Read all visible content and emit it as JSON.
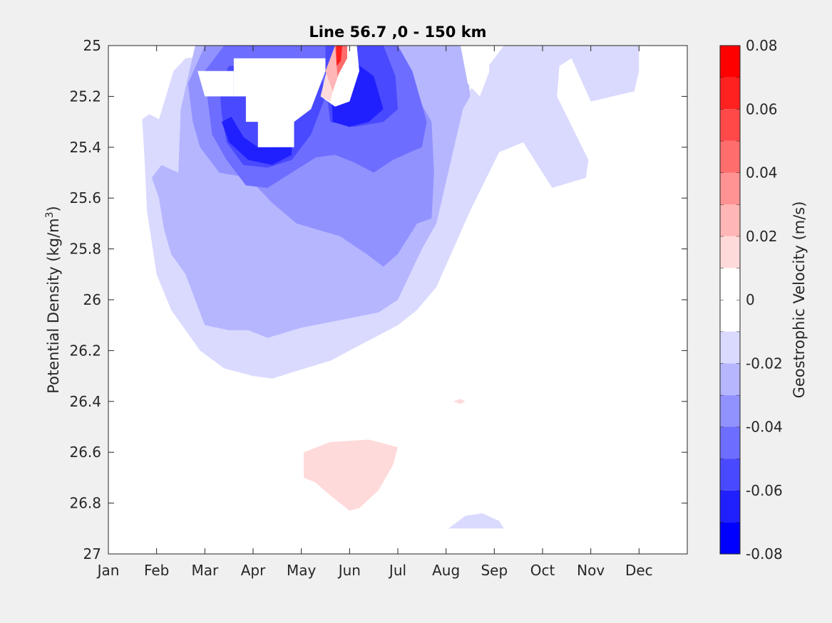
{
  "chart_data": {
    "type": "filled-contour",
    "title": "Line 56.7 ,0 - 150 km",
    "xlabel": "",
    "ylabel": "Potential Density (kg/m",
    "ylabel_sup": "3",
    "ylabel_close": ")",
    "y_reversed": true,
    "ylim": [
      25,
      27
    ],
    "xlim": [
      1,
      13
    ],
    "x_ticks": [
      {
        "label": "Jan",
        "value": 1
      },
      {
        "label": "Feb",
        "value": 2
      },
      {
        "label": "Mar",
        "value": 3
      },
      {
        "label": "Apr",
        "value": 4
      },
      {
        "label": "May",
        "value": 5
      },
      {
        "label": "Jun",
        "value": 6
      },
      {
        "label": "Jul",
        "value": 7
      },
      {
        "label": "Aug",
        "value": 8
      },
      {
        "label": "Sep",
        "value": 9
      },
      {
        "label": "Oct",
        "value": 10
      },
      {
        "label": "Nov",
        "value": 11
      },
      {
        "label": "Dec",
        "value": 12
      }
    ],
    "y_ticks": [
      {
        "label": "25",
        "value": 25
      },
      {
        "label": "25.2",
        "value": 25.2
      },
      {
        "label": "25.4",
        "value": 25.4
      },
      {
        "label": "25.6",
        "value": 25.6
      },
      {
        "label": "25.8",
        "value": 25.8
      },
      {
        "label": "26",
        "value": 26
      },
      {
        "label": "26.2",
        "value": 26.2
      },
      {
        "label": "26.4",
        "value": 26.4
      },
      {
        "label": "26.6",
        "value": 26.6
      },
      {
        "label": "26.8",
        "value": 26.8
      },
      {
        "label": "27",
        "value": 27
      }
    ],
    "colorbar": {
      "label": "Geostrophic Velocity (m/s)",
      "min": -0.08,
      "max": 0.08,
      "levels": [
        {
          "lo": -0.08,
          "hi": -0.07,
          "color": "#0000ff"
        },
        {
          "lo": -0.07,
          "hi": -0.06,
          "color": "#2020ff"
        },
        {
          "lo": -0.06,
          "hi": -0.05,
          "color": "#4949ff"
        },
        {
          "lo": -0.05,
          "hi": -0.04,
          "color": "#6d6dff"
        },
        {
          "lo": -0.04,
          "hi": -0.03,
          "color": "#9292ff"
        },
        {
          "lo": -0.03,
          "hi": -0.02,
          "color": "#b6b6ff"
        },
        {
          "lo": -0.02,
          "hi": -0.01,
          "color": "#dadaff"
        },
        {
          "lo": -0.01,
          "hi": 0.0,
          "color": "#ffffff"
        },
        {
          "lo": 0.0,
          "hi": 0.01,
          "color": "#ffffff"
        },
        {
          "lo": 0.01,
          "hi": 0.02,
          "color": "#ffdada"
        },
        {
          "lo": 0.02,
          "hi": 0.03,
          "color": "#ffb6b6"
        },
        {
          "lo": 0.03,
          "hi": 0.04,
          "color": "#ff9292"
        },
        {
          "lo": 0.04,
          "hi": 0.05,
          "color": "#ff6d6d"
        },
        {
          "lo": 0.05,
          "hi": 0.06,
          "color": "#ff4949"
        },
        {
          "lo": 0.06,
          "hi": 0.07,
          "color": "#ff2020"
        },
        {
          "lo": 0.07,
          "hi": 0.08,
          "color": "#ff0000"
        }
      ],
      "ticks": [
        {
          "label": "0.08",
          "value": 0.08
        },
        {
          "label": "0.06",
          "value": 0.06
        },
        {
          "label": "0.04",
          "value": 0.04
        },
        {
          "label": "0.02",
          "value": 0.02
        },
        {
          "label": "0",
          "value": 0.0
        },
        {
          "label": "-0.02",
          "value": -0.02
        },
        {
          "label": "-0.04",
          "value": -0.04
        },
        {
          "label": "-0.06",
          "value": -0.06
        },
        {
          "label": "-0.08",
          "value": -0.08
        }
      ]
    },
    "regions": [
      {
        "level": -0.015,
        "points": [
          [
            1.7,
            25.29
          ],
          [
            1.85,
            25.27
          ],
          [
            2.05,
            25.29
          ],
          [
            2.35,
            25.1
          ],
          [
            2.6,
            25.05
          ],
          [
            5.0,
            25.0
          ],
          [
            8.1,
            25.0
          ],
          [
            8.2,
            25.15
          ],
          [
            8.4,
            25.2
          ],
          [
            9.2,
            25.0
          ],
          [
            12.0,
            25.0
          ],
          [
            12.0,
            25.1
          ],
          [
            11.9,
            25.18
          ],
          [
            11.0,
            25.22
          ],
          [
            10.6,
            25.05
          ],
          [
            10.35,
            25.08
          ],
          [
            10.3,
            25.2
          ],
          [
            10.95,
            25.45
          ],
          [
            10.9,
            25.52
          ],
          [
            10.2,
            25.56
          ],
          [
            9.6,
            25.38
          ],
          [
            9.1,
            25.42
          ],
          [
            8.5,
            25.65
          ],
          [
            7.8,
            25.95
          ],
          [
            7.4,
            26.04
          ],
          [
            7.0,
            26.1
          ],
          [
            6.3,
            26.17
          ],
          [
            5.6,
            26.24
          ],
          [
            4.9,
            26.28
          ],
          [
            4.4,
            26.31
          ],
          [
            4.0,
            26.3
          ],
          [
            3.4,
            26.27
          ],
          [
            2.9,
            26.2
          ],
          [
            2.3,
            26.04
          ],
          [
            2.0,
            25.9
          ],
          [
            1.8,
            25.65
          ],
          [
            1.75,
            25.45
          ]
        ]
      },
      {
        "level": -0.025,
        "points": [
          [
            1.9,
            25.52
          ],
          [
            2.1,
            25.47
          ],
          [
            2.45,
            25.5
          ],
          [
            2.5,
            25.25
          ],
          [
            2.8,
            25.0
          ],
          [
            8.4,
            25.0
          ],
          [
            8.5,
            25.2
          ],
          [
            8.35,
            25.25
          ],
          [
            7.8,
            25.7
          ],
          [
            7.5,
            25.8
          ],
          [
            7.0,
            26.0
          ],
          [
            6.6,
            26.05
          ],
          [
            5.8,
            26.08
          ],
          [
            5.0,
            26.11
          ],
          [
            4.3,
            26.15
          ],
          [
            3.9,
            26.12
          ],
          [
            3.5,
            26.12
          ],
          [
            3.0,
            26.1
          ],
          [
            2.6,
            25.9
          ],
          [
            2.3,
            25.82
          ],
          [
            2.15,
            25.72
          ],
          [
            2.05,
            25.6
          ]
        ]
      },
      {
        "level": -0.035,
        "points": [
          [
            2.65,
            25.15
          ],
          [
            3.0,
            25.0
          ],
          [
            7.0,
            25.0
          ],
          [
            7.4,
            25.2
          ],
          [
            7.7,
            25.3
          ],
          [
            7.75,
            25.5
          ],
          [
            7.7,
            25.68
          ],
          [
            7.4,
            25.7
          ],
          [
            7.0,
            25.82
          ],
          [
            6.7,
            25.87
          ],
          [
            6.35,
            25.82
          ],
          [
            5.8,
            25.75
          ],
          [
            4.9,
            25.7
          ],
          [
            4.4,
            25.62
          ],
          [
            3.9,
            25.52
          ],
          [
            3.3,
            25.5
          ],
          [
            2.9,
            25.4
          ],
          [
            2.75,
            25.3
          ]
        ]
      },
      {
        "level": -0.045,
        "points": [
          [
            3.0,
            25.1
          ],
          [
            3.4,
            25.0
          ],
          [
            7.0,
            25.0
          ],
          [
            7.3,
            25.1
          ],
          [
            7.45,
            25.2
          ],
          [
            7.6,
            25.3
          ],
          [
            7.5,
            25.4
          ],
          [
            7.25,
            25.42
          ],
          [
            6.9,
            25.45
          ],
          [
            6.5,
            25.5
          ],
          [
            6.1,
            25.46
          ],
          [
            5.7,
            25.43
          ],
          [
            5.3,
            25.44
          ],
          [
            4.8,
            25.5
          ],
          [
            4.3,
            25.56
          ],
          [
            3.85,
            25.55
          ],
          [
            3.45,
            25.45
          ],
          [
            3.15,
            25.35
          ],
          [
            3.05,
            25.2
          ]
        ]
      },
      {
        "level": -0.055,
        "points": [
          [
            3.3,
            25.15
          ],
          [
            3.5,
            25.08
          ],
          [
            5.0,
            25.07
          ],
          [
            5.4,
            25.1
          ],
          [
            5.5,
            25.2
          ],
          [
            5.2,
            25.35
          ],
          [
            4.8,
            25.45
          ],
          [
            4.3,
            25.48
          ],
          [
            3.8,
            25.47
          ],
          [
            3.45,
            25.38
          ],
          [
            3.35,
            25.27
          ]
        ]
      },
      {
        "level": -0.055,
        "points": [
          [
            5.5,
            25.0
          ],
          [
            6.7,
            25.0
          ],
          [
            6.95,
            25.12
          ],
          [
            7.0,
            25.25
          ],
          [
            6.7,
            25.3
          ],
          [
            6.1,
            25.32
          ],
          [
            5.6,
            25.3
          ],
          [
            5.5,
            25.15
          ]
        ]
      },
      {
        "level": -0.065,
        "points": [
          [
            5.6,
            25.1
          ],
          [
            6.0,
            25.05
          ],
          [
            6.5,
            25.12
          ],
          [
            6.7,
            25.25
          ],
          [
            6.4,
            25.3
          ],
          [
            6.0,
            25.32
          ],
          [
            5.65,
            25.3
          ]
        ]
      },
      {
        "level": -0.065,
        "points": [
          [
            3.35,
            25.3
          ],
          [
            3.55,
            25.28
          ],
          [
            3.8,
            25.36
          ],
          [
            4.1,
            25.4
          ],
          [
            4.5,
            25.4
          ],
          [
            4.8,
            25.35
          ],
          [
            4.8,
            25.43
          ],
          [
            4.4,
            25.47
          ],
          [
            3.9,
            25.45
          ],
          [
            3.5,
            25.38
          ]
        ]
      },
      {
        "level": 0.005,
        "points": [
          [
            3.6,
            25.05
          ],
          [
            5.5,
            25.05
          ],
          [
            5.5,
            25.1
          ],
          [
            5.2,
            25.25
          ],
          [
            4.85,
            25.3
          ],
          [
            4.85,
            25.4
          ],
          [
            4.1,
            25.4
          ],
          [
            4.1,
            25.3
          ],
          [
            3.85,
            25.3
          ],
          [
            3.85,
            25.2
          ],
          [
            3.6,
            25.2
          ]
        ]
      },
      {
        "level": 0.005,
        "points": [
          [
            2.85,
            25.1
          ],
          [
            3.6,
            25.1
          ],
          [
            3.6,
            25.2
          ],
          [
            3.0,
            25.2
          ]
        ]
      },
      {
        "level": 0.005,
        "points": [
          [
            5.4,
            25.2
          ],
          [
            5.55,
            25.08
          ],
          [
            5.75,
            25.0
          ],
          [
            6.15,
            25.0
          ],
          [
            6.2,
            25.1
          ],
          [
            6.0,
            25.22
          ],
          [
            5.7,
            25.24
          ]
        ]
      },
      {
        "level": 0.005,
        "points": [
          [
            8.3,
            25.0
          ],
          [
            8.85,
            25.0
          ],
          [
            8.9,
            25.1
          ],
          [
            8.7,
            25.2
          ],
          [
            8.45,
            25.15
          ]
        ]
      },
      {
        "level": 0.015,
        "points": [
          [
            5.4,
            25.2
          ],
          [
            5.6,
            25.05
          ],
          [
            5.7,
            25.15
          ],
          [
            5.6,
            25.22
          ]
        ]
      },
      {
        "level": 0.025,
        "points": [
          [
            5.5,
            25.1
          ],
          [
            5.6,
            25.05
          ],
          [
            5.7,
            25.0
          ],
          [
            5.8,
            25.0
          ],
          [
            5.8,
            25.1
          ],
          [
            5.65,
            25.18
          ]
        ]
      },
      {
        "level": 0.045,
        "points": [
          [
            5.7,
            25.0
          ],
          [
            5.95,
            25.0
          ],
          [
            5.95,
            25.05
          ],
          [
            5.75,
            25.12
          ]
        ]
      },
      {
        "level": 0.065,
        "points": [
          [
            5.72,
            25.0
          ],
          [
            5.85,
            25.0
          ],
          [
            5.82,
            25.06
          ],
          [
            5.73,
            25.08
          ]
        ]
      },
      {
        "level": 0.015,
        "points": [
          [
            5.05,
            26.6
          ],
          [
            5.6,
            26.56
          ],
          [
            6.4,
            26.55
          ],
          [
            7.0,
            26.58
          ],
          [
            6.9,
            26.65
          ],
          [
            6.6,
            26.75
          ],
          [
            6.2,
            26.82
          ],
          [
            6.0,
            26.83
          ],
          [
            5.6,
            26.77
          ],
          [
            5.3,
            26.72
          ],
          [
            5.05,
            26.7
          ]
        ]
      },
      {
        "level": 0.015,
        "points": [
          [
            8.15,
            26.4
          ],
          [
            8.3,
            26.39
          ],
          [
            8.4,
            26.4
          ],
          [
            8.3,
            26.41
          ]
        ]
      },
      {
        "level": -0.015,
        "points": [
          [
            8.05,
            26.9
          ],
          [
            8.4,
            26.85
          ],
          [
            8.75,
            26.84
          ],
          [
            9.1,
            26.87
          ],
          [
            9.2,
            26.9
          ]
        ]
      }
    ]
  }
}
